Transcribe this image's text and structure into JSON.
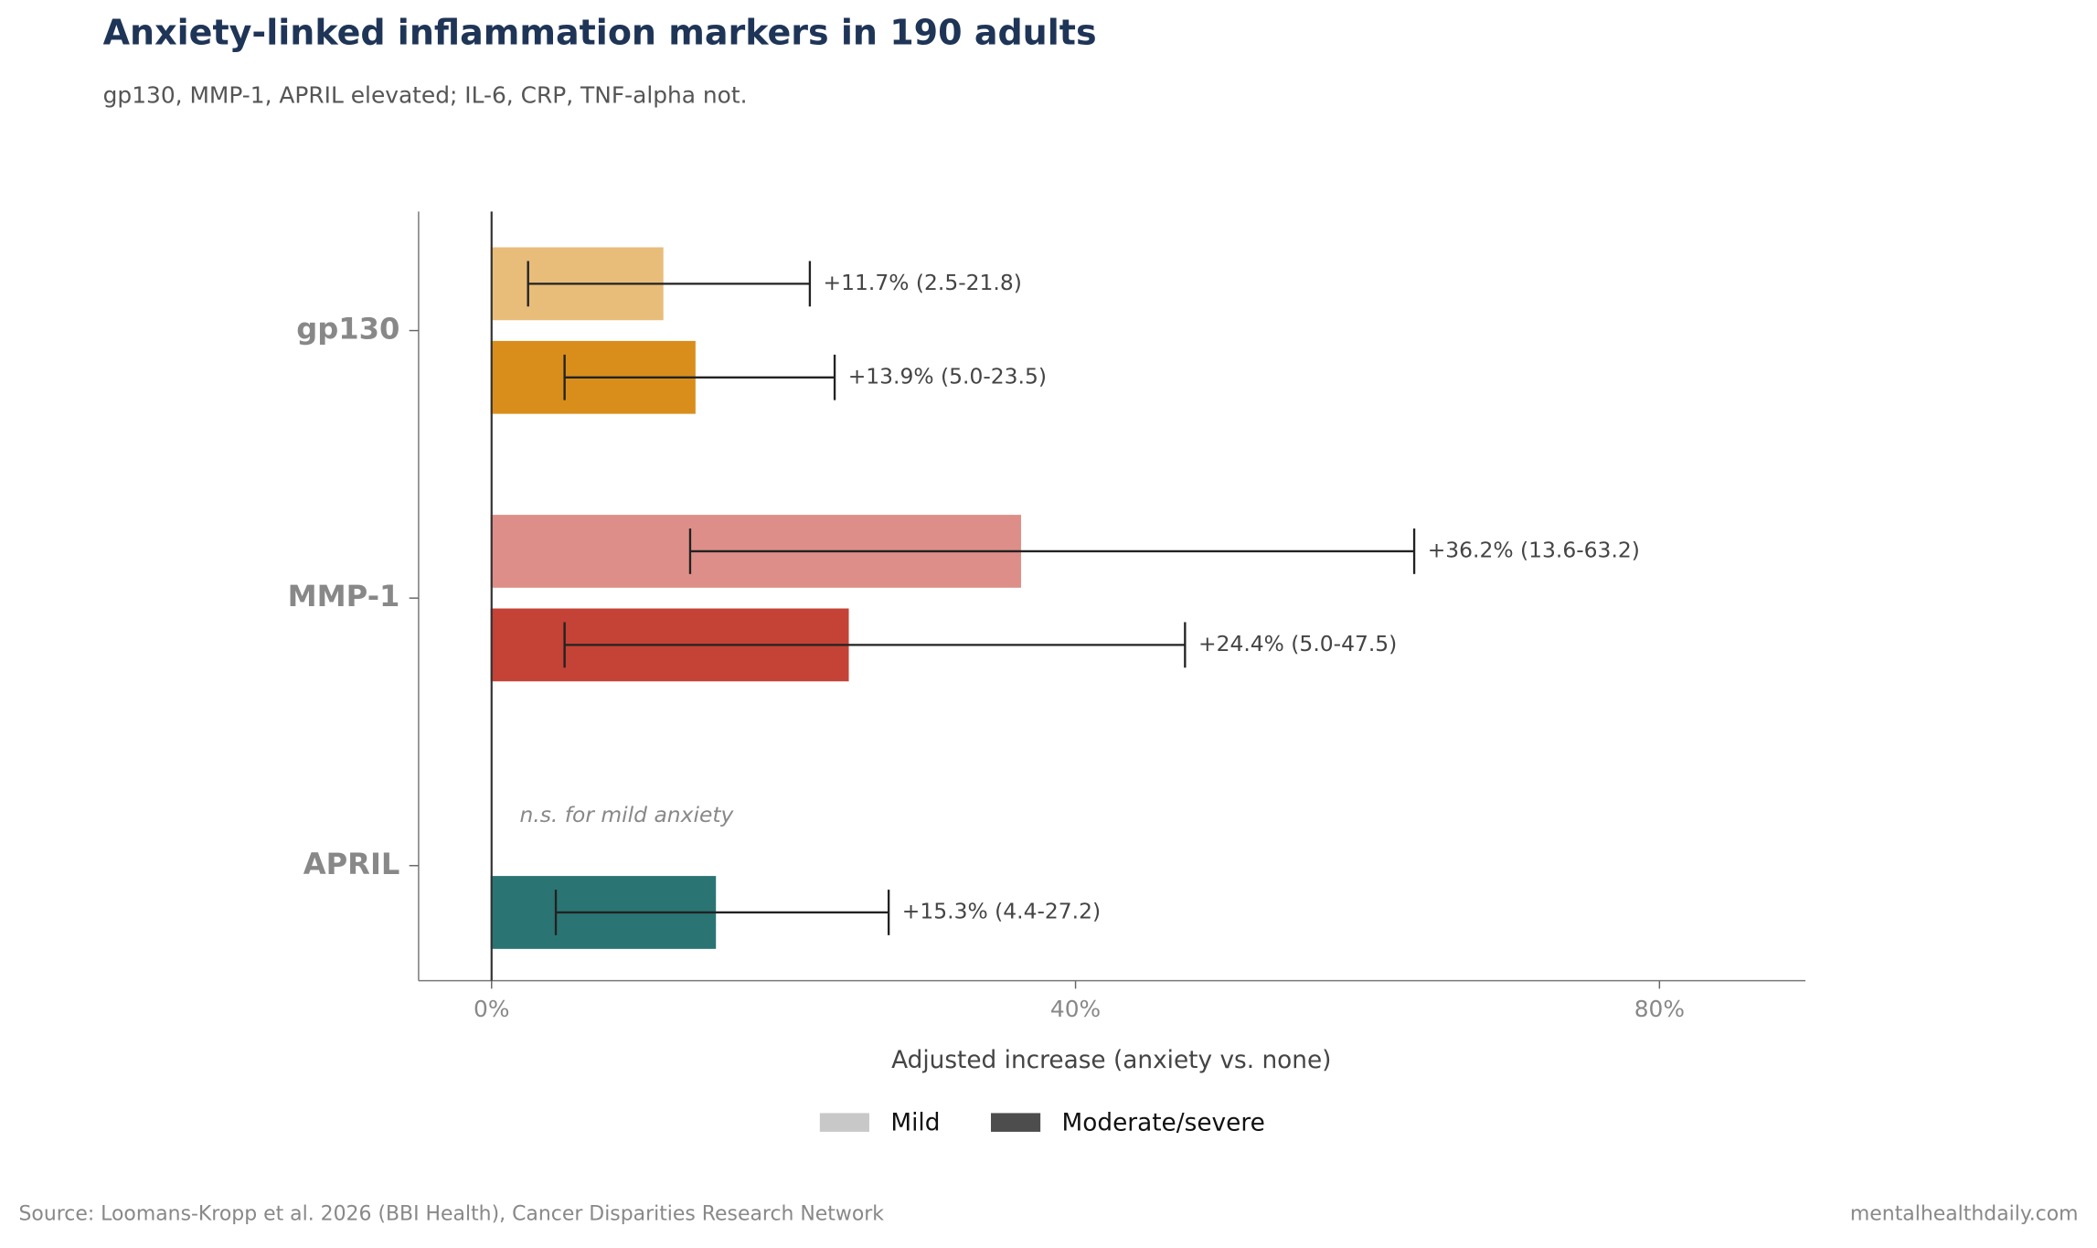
{
  "chart_data": {
    "type": "hbar-ci",
    "title": "Anxiety-linked inflammation markers in 190 adults",
    "subtitle": "gp130, MMP-1, APRIL elevated; IL-6, CRP, TNF-alpha not.",
    "x_label": "Adjusted increase (anxiety vs. none)",
    "categories": [
      "gp130",
      "MMP-1",
      "APRIL"
    ],
    "series": [
      {
        "name": "Mild",
        "color": "#c8c8c8",
        "colors": [
          "#e8bd7a",
          "#de8e88",
          null
        ],
        "values": [
          11.7,
          36.2,
          null
        ],
        "ci_low": [
          2.5,
          13.6,
          null
        ],
        "ci_high": [
          21.8,
          63.2,
          null
        ],
        "value_labels": [
          "+11.7% (2.5-21.8)",
          "+36.2% (13.6-63.2)",
          null
        ]
      },
      {
        "name": "Moderate/severe",
        "color": "#4d4d4d",
        "colors": [
          "#d98e1c",
          "#c44336",
          "#2a7574"
        ],
        "values": [
          13.9,
          24.4,
          15.3
        ],
        "ci_low": [
          5.0,
          5.0,
          4.4
        ],
        "ci_high": [
          23.5,
          47.5,
          27.2
        ],
        "value_labels": [
          "+13.9% (5.0-23.5)",
          "+24.4% (5.0-47.5)",
          "+15.3% (4.4-27.2)"
        ]
      }
    ],
    "annotation": "n.s. for mild anxiety",
    "xlim": [
      -5,
      90
    ],
    "xticks": [
      {
        "value": 0,
        "label": "0%"
      },
      {
        "value": 40,
        "label": "40%"
      },
      {
        "value": 80,
        "label": "80%"
      }
    ],
    "legend": "bottom",
    "source": "Source: Loomans-Kropp et al. 2026 (BBI Health), Cancer Disparities Research Network",
    "credit": "mentalhealthdaily.com"
  }
}
